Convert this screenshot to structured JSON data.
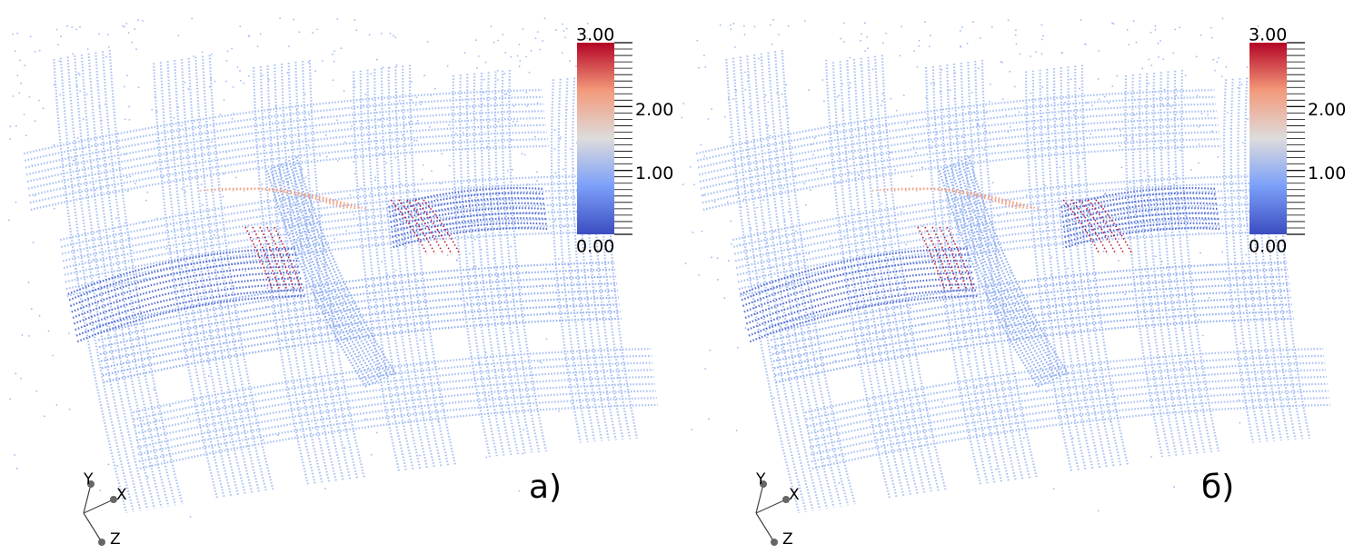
{
  "panels": [
    {
      "label": "a)",
      "axes": [
        "Y",
        "X",
        "Z"
      ],
      "colorbar": {
        "range": [
          0,
          3
        ],
        "ticks": [
          {
            "value": 3,
            "label": "3.00"
          },
          {
            "value": 2,
            "label": "2.00"
          },
          {
            "value": 1,
            "label": "1.00"
          },
          {
            "value": 0,
            "label": "0.00"
          }
        ]
      }
    },
    {
      "label": "б)",
      "axes": [
        "Y",
        "X",
        "Z"
      ],
      "colorbar": {
        "range": [
          0,
          3
        ],
        "ticks": [
          {
            "value": 3,
            "label": "3.00"
          },
          {
            "value": 2,
            "label": "2.00"
          },
          {
            "value": 1,
            "label": "1.00"
          },
          {
            "value": 0,
            "label": "0.00"
          }
        ]
      }
    }
  ]
}
